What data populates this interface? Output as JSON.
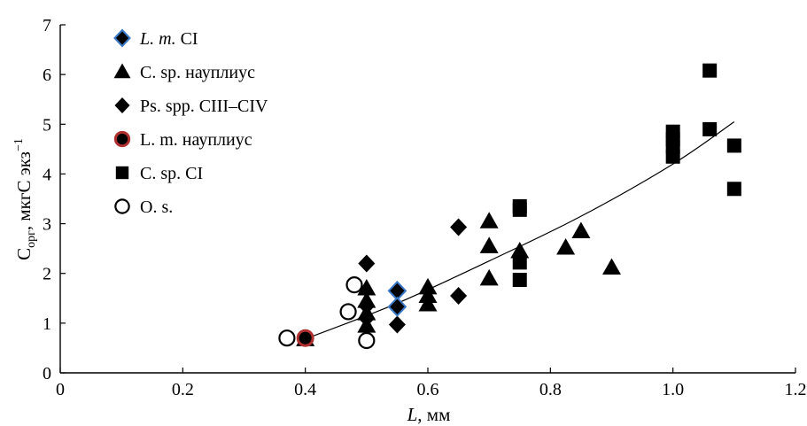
{
  "chart_data": {
    "type": "scatter",
    "title": "",
    "xlabel": "L, мм",
    "xlabel_italic_part": "L",
    "xlabel_rest": ", мм",
    "ylabel_base": "C",
    "ylabel_sub": "орг",
    "ylabel_rest": ", мкгC экз",
    "ylabel_sup": "−1",
    "xlim": [
      0,
      1.2
    ],
    "ylim": [
      0,
      7
    ],
    "x_ticks": [
      "0",
      "0.2",
      "0.4",
      "0.6",
      "0.8",
      "1.0",
      "1.2"
    ],
    "x_tick_values": [
      0,
      0.2,
      0.4,
      0.6,
      0.8,
      1.0,
      1.2
    ],
    "y_ticks": [
      "0",
      "1",
      "2",
      "3",
      "4",
      "5",
      "6",
      "7"
    ],
    "y_tick_values": [
      0,
      1,
      2,
      3,
      4,
      5,
      6,
      7
    ],
    "grid": false,
    "legend_position": "top-left",
    "series": [
      {
        "name": "L. m. CI",
        "marker": "diamond-outlined",
        "color": "#000000",
        "edge_color": "#3a78c8",
        "points": [
          [
            0.55,
            1.65
          ],
          [
            0.55,
            1.33
          ]
        ]
      },
      {
        "name": "C. sp. науплиус",
        "marker": "triangle",
        "color": "#000000",
        "points": [
          [
            0.4,
            0.68
          ],
          [
            0.5,
            1.7
          ],
          [
            0.5,
            1.45
          ],
          [
            0.5,
            1.2
          ],
          [
            0.5,
            0.95
          ],
          [
            0.6,
            1.72
          ],
          [
            0.6,
            1.55
          ],
          [
            0.6,
            1.38
          ],
          [
            0.7,
            3.05
          ],
          [
            0.7,
            2.55
          ],
          [
            0.7,
            1.9
          ],
          [
            0.75,
            2.45
          ],
          [
            0.825,
            2.52
          ],
          [
            0.85,
            2.85
          ],
          [
            0.9,
            2.12
          ]
        ]
      },
      {
        "name": "Ps. spp. CIII–CIV",
        "marker": "diamond",
        "color": "#000000",
        "points": [
          [
            0.5,
            2.2
          ],
          [
            0.5,
            1.35
          ],
          [
            0.5,
            1.1
          ],
          [
            0.55,
            0.97
          ],
          [
            0.65,
            2.93
          ],
          [
            0.65,
            1.55
          ]
        ]
      },
      {
        "name": "L. m. науплиус",
        "marker": "circle-filled",
        "color": "#000000",
        "edge_color": "#b03030",
        "points": [
          [
            0.4,
            0.7
          ]
        ]
      },
      {
        "name": "C. sp. CI",
        "marker": "square",
        "color": "#000000",
        "points": [
          [
            0.75,
            3.35
          ],
          [
            0.75,
            3.28
          ],
          [
            0.75,
            2.22
          ],
          [
            0.75,
            1.87
          ],
          [
            1.0,
            4.85
          ],
          [
            1.0,
            4.7
          ],
          [
            1.0,
            4.55
          ],
          [
            1.0,
            4.35
          ],
          [
            1.06,
            6.08
          ],
          [
            1.06,
            4.9
          ],
          [
            1.1,
            4.57
          ],
          [
            1.1,
            3.7
          ]
        ]
      },
      {
        "name": "O. s.",
        "marker": "circle-open",
        "color": "#000000",
        "points": [
          [
            0.37,
            0.7
          ],
          [
            0.47,
            1.23
          ],
          [
            0.48,
            1.77
          ],
          [
            0.5,
            0.65
          ]
        ]
      }
    ],
    "trend_curve": {
      "points": [
        [
          0.4,
          0.68
        ],
        [
          0.55,
          1.4
        ],
        [
          0.7,
          2.25
        ],
        [
          0.85,
          3.15
        ],
        [
          1.0,
          4.2
        ],
        [
          1.1,
          5.05
        ]
      ]
    }
  }
}
